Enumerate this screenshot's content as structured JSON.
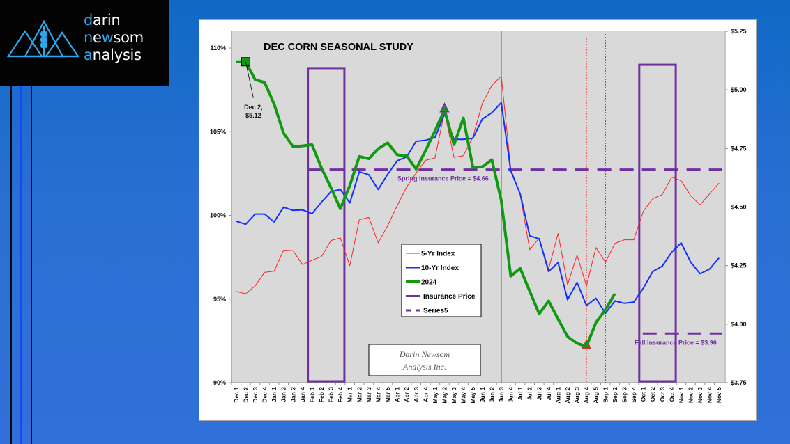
{
  "logo": {
    "lines": [
      {
        "first": "d",
        "rest": "arin"
      },
      {
        "first": "n",
        "mid": "e",
        "hl2": "w",
        "rest": "som"
      },
      {
        "first": "a",
        "rest": "nalysis"
      }
    ],
    "brand_color": "#2ba7f0"
  },
  "chart_data": {
    "type": "line",
    "title": "DEC CORN SEASONAL STUDY",
    "xlabel": "",
    "ylabel": "",
    "y_left": {
      "ylim": [
        90,
        111
      ],
      "ticks": [
        90,
        95,
        100,
        105,
        110
      ],
      "tick_labels": [
        "90%",
        "95%",
        "100%",
        "105%",
        "110%"
      ]
    },
    "y_right": {
      "ylim": [
        3.75,
        5.25
      ],
      "ticks": [
        3.75,
        4.0,
        4.25,
        4.5,
        4.75,
        5.0,
        5.25
      ],
      "tick_labels": [
        "$3.75",
        "$4.00",
        "$4.25",
        "$4.50",
        "$4.75",
        "$5.00",
        "$5.25"
      ]
    },
    "grid": false,
    "legend_position": "center-left",
    "categories": [
      "Dec 1",
      "Dec 2",
      "Dec 3",
      "Dec 4",
      "Jan 1",
      "Jan 2",
      "Jan 3",
      "Jan 4",
      "Feb 1",
      "Feb 2",
      "Feb 3",
      "Feb 4",
      "Mar 1",
      "Mar 2",
      "Mar 3",
      "Mar 4",
      "Mar 5",
      "Apr 1",
      "Apr 2",
      "Apr 3",
      "Apr 4",
      "May 1",
      "May 2",
      "May 3",
      "May 4",
      "May 5",
      "Jun 1",
      "Jun 2",
      "Jun 3",
      "Jun 4",
      "Jul 1",
      "Jul 2",
      "Jul 3",
      "Jul 4",
      "Aug 1",
      "Aug 2",
      "Aug 3",
      "Aug 4",
      "Aug 5",
      "Sep 1",
      "Sep 2",
      "Sep 3",
      "Sep 4",
      "Oct 1",
      "Oct 2",
      "Oct 3",
      "Oct 4",
      "Nov 1",
      "Nov 2",
      "Nov 3",
      "Nov 4",
      "Nov 5"
    ],
    "series": [
      {
        "name": "5-Yr Index",
        "axis": "left",
        "color": "#ff2020",
        "values": [
          95.45,
          95.32,
          95.79,
          96.6,
          96.67,
          97.92,
          97.89,
          97.06,
          97.32,
          97.54,
          98.5,
          98.65,
          97.0,
          99.74,
          99.88,
          98.36,
          99.38,
          100.58,
          101.7,
          102.53,
          103.29,
          103.43,
          106.21,
          103.46,
          103.57,
          104.68,
          106.7,
          107.76,
          108.32,
          102.8,
          101.21,
          97.95,
          98.64,
          96.79,
          98.92,
          95.86,
          97.63,
          95.79,
          98.08,
          97.21,
          98.32,
          98.54,
          98.54,
          100.25,
          101.0,
          101.24,
          102.29,
          102.07,
          101.18,
          100.63,
          101.28,
          101.93
        ]
      },
      {
        "name": "10-Yr Index",
        "axis": "left",
        "color": "#1030ff",
        "values": [
          99.65,
          99.47,
          100.08,
          100.08,
          99.61,
          100.49,
          100.3,
          100.33,
          100.1,
          100.79,
          101.42,
          101.55,
          100.75,
          102.61,
          102.43,
          101.55,
          102.46,
          103.26,
          103.5,
          104.43,
          104.49,
          104.65,
          106.07,
          104.54,
          104.54,
          104.61,
          105.76,
          106.14,
          106.74,
          102.67,
          101.28,
          98.78,
          98.6,
          96.65,
          97.18,
          94.96,
          96.0,
          94.61,
          95.05,
          94.15,
          94.89,
          94.75,
          94.82,
          95.65,
          96.65,
          96.97,
          97.8,
          98.36,
          97.21,
          96.51,
          96.79,
          97.46
        ]
      },
      {
        "name": "2024",
        "axis": "right",
        "color": "#119911",
        "values": [
          5.12,
          5.12,
          5.044,
          5.032,
          4.94,
          4.815,
          4.758,
          4.761,
          4.766,
          4.667,
          4.583,
          4.493,
          4.592,
          4.716,
          4.706,
          4.749,
          4.774,
          4.723,
          4.718,
          4.662,
          4.741,
          4.825,
          4.915,
          4.766,
          4.88,
          4.669,
          4.672,
          4.702,
          4.528,
          4.205,
          4.238,
          4.141,
          4.044,
          4.099,
          4.022,
          3.947,
          3.918,
          3.905,
          4.007,
          4.062,
          4.131,
          null,
          null,
          null,
          null,
          null,
          null,
          null,
          null,
          null,
          null,
          null
        ]
      },
      {
        "name": "Insurance Price",
        "axis": "right",
        "color": "#7030a0",
        "values": []
      },
      {
        "name": "Series5",
        "axis": "right",
        "color": "#7030a0",
        "dashed": true,
        "values": []
      }
    ],
    "insurance_lines": [
      {
        "label": "Spring Insurance Price = $4.66",
        "value": 4.66,
        "from": "Feb 1",
        "to": "Nov 5"
      },
      {
        "label": "Fall Insurance Price = $3.96",
        "value": 3.96,
        "from": "Oct 1",
        "to": "Nov 5"
      }
    ],
    "boxes": [
      {
        "name": "spring-window",
        "from": "Feb 1",
        "to": "Feb 4",
        "top_pct": 108.8
      },
      {
        "name": "fall-window",
        "from": "Oct 1",
        "to": "Oct 4",
        "top_pct": 109.0
      }
    ],
    "vertical_markers": [
      {
        "at": "Jun 3",
        "style": "solid",
        "color": "#7030a0"
      },
      {
        "at": "Aug 4",
        "style": "dotted",
        "color": "#ff3030"
      },
      {
        "at": "Sep 1",
        "style": "dotted",
        "color": "#2040ff"
      }
    ],
    "point_markers": [
      {
        "at": "Dec 2",
        "series": "2024",
        "shape": "square"
      },
      {
        "at": "May 2",
        "series": "2024",
        "shape": "triangle",
        "color": "#7030a0"
      },
      {
        "at": "Aug 4",
        "series": "2024",
        "shape": "triangle",
        "color": "#cc3030"
      }
    ],
    "annotations": [
      {
        "text_lines": [
          "Dec 2,",
          "$5.12"
        ],
        "at": "Dec 2"
      }
    ],
    "watermark": [
      "Darin Newsom",
      "Analysis Inc."
    ]
  }
}
